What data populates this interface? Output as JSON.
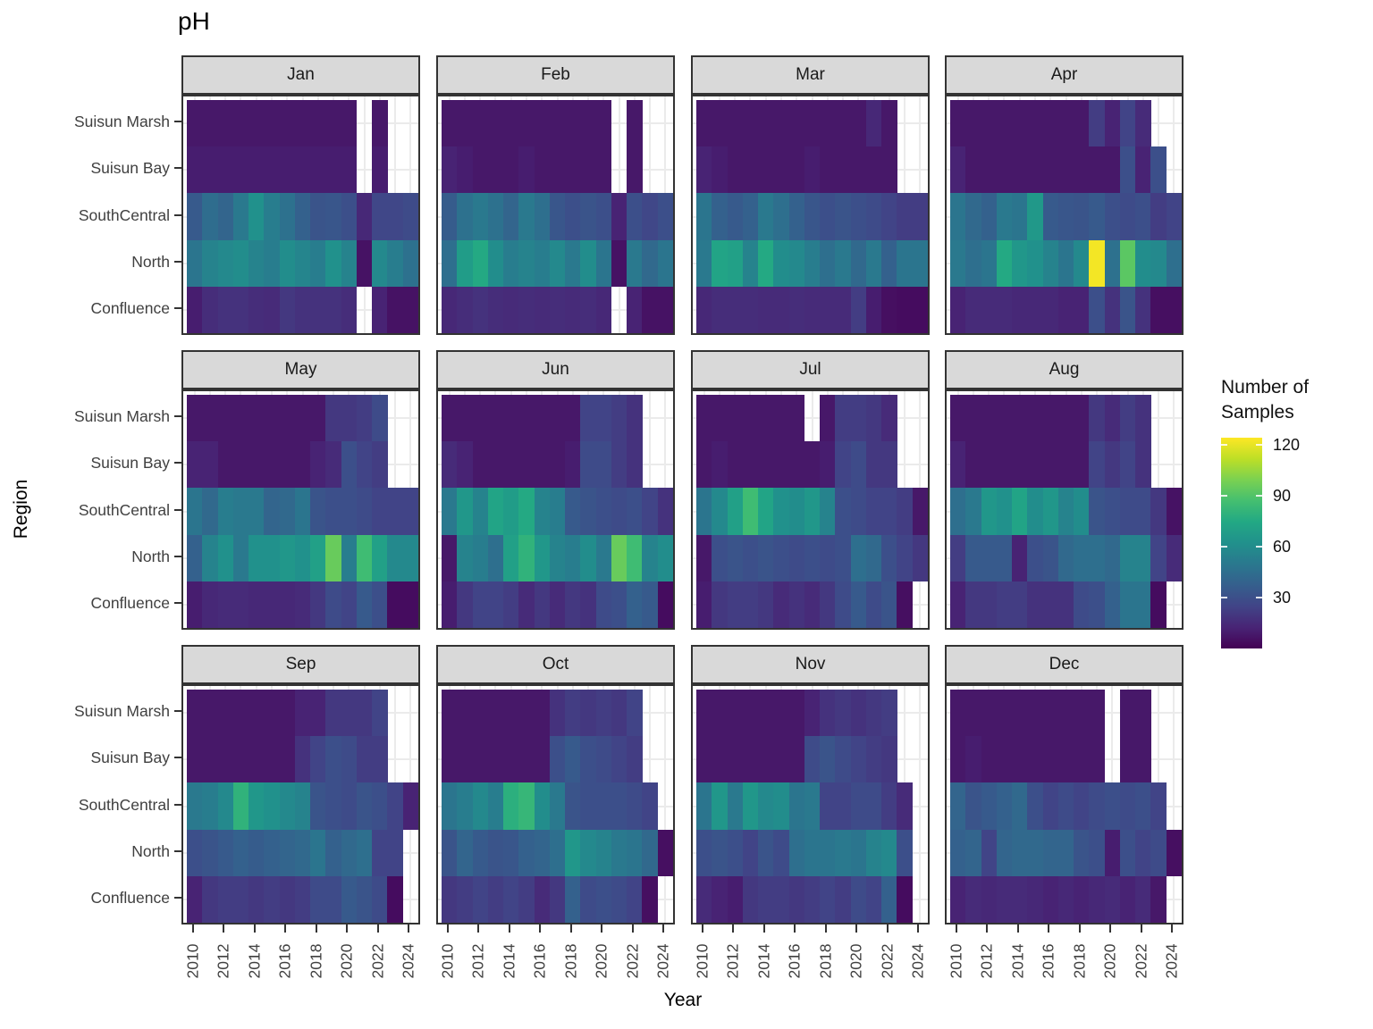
{
  "chart_data": {
    "type": "heatmap",
    "title": "pH",
    "xlabel": "Year",
    "ylabel": "Region",
    "years": [
      2010,
      2011,
      2012,
      2013,
      2014,
      2015,
      2016,
      2017,
      2018,
      2019,
      2020,
      2021,
      2022,
      2023,
      2024
    ],
    "x_tick_labels": [
      "2010",
      "2012",
      "2014",
      "2016",
      "2018",
      "2020",
      "2022",
      "2024"
    ],
    "regions": [
      "Suisun Marsh",
      "Suisun Bay",
      "SouthCentral",
      "North",
      "Confluence"
    ],
    "legend": {
      "title_line1": "Number of",
      "title_line2": "Samples",
      "ticks": [
        120,
        90,
        60,
        30
      ],
      "domain": [
        0,
        124
      ]
    },
    "colors": {
      "strip_bg": "#d9d9d9",
      "panel_border": "#333333",
      "grid": "#ebebeb",
      "tick_label": "#404040",
      "viridis": [
        [
          0,
          "#440154"
        ],
        [
          0.1,
          "#482475"
        ],
        [
          0.2,
          "#414487"
        ],
        [
          0.3,
          "#355f8d"
        ],
        [
          0.4,
          "#2a788e"
        ],
        [
          0.5,
          "#21918c"
        ],
        [
          0.6,
          "#22a884"
        ],
        [
          0.7,
          "#44bf70"
        ],
        [
          0.8,
          "#7ad151"
        ],
        [
          0.9,
          "#bddf26"
        ],
        [
          1,
          "#fde725"
        ]
      ]
    },
    "facets": [
      {
        "label": "Jan",
        "rows": [
          [
            8,
            8,
            8,
            8,
            8,
            8,
            8,
            8,
            8,
            8,
            8,
            null,
            8,
            null,
            null
          ],
          [
            10,
            10,
            10,
            10,
            10,
            10,
            10,
            10,
            10,
            10,
            10,
            null,
            10,
            null,
            null
          ],
          [
            35,
            44,
            40,
            50,
            62,
            52,
            46,
            38,
            32,
            33,
            30,
            14,
            26,
            26,
            28
          ],
          [
            48,
            55,
            58,
            60,
            55,
            52,
            60,
            56,
            52,
            62,
            55,
            6,
            58,
            52,
            46
          ],
          [
            10,
            16,
            18,
            18,
            16,
            15,
            20,
            18,
            18,
            18,
            16,
            null,
            12,
            6,
            6
          ]
        ]
      },
      {
        "label": "Feb",
        "rows": [
          [
            8,
            8,
            8,
            8,
            8,
            8,
            8,
            8,
            8,
            8,
            8,
            null,
            8,
            null,
            null
          ],
          [
            12,
            10,
            8,
            8,
            8,
            10,
            8,
            8,
            8,
            8,
            8,
            null,
            8,
            null,
            null
          ],
          [
            36,
            46,
            50,
            46,
            40,
            50,
            45,
            33,
            30,
            32,
            30,
            12,
            30,
            26,
            30
          ],
          [
            45,
            68,
            75,
            60,
            52,
            55,
            52,
            58,
            50,
            60,
            48,
            6,
            50,
            42,
            48
          ],
          [
            14,
            16,
            18,
            16,
            15,
            16,
            15,
            16,
            15,
            16,
            14,
            null,
            12,
            6,
            6
          ]
        ]
      },
      {
        "label": "Mar",
        "rows": [
          [
            8,
            8,
            8,
            8,
            8,
            8,
            8,
            8,
            8,
            8,
            8,
            14,
            8,
            null,
            null
          ],
          [
            12,
            10,
            8,
            8,
            8,
            8,
            8,
            10,
            8,
            8,
            8,
            8,
            8,
            null,
            null
          ],
          [
            48,
            38,
            35,
            38,
            50,
            45,
            38,
            33,
            30,
            32,
            30,
            28,
            25,
            22,
            22
          ],
          [
            50,
            72,
            70,
            55,
            75,
            60,
            58,
            52,
            45,
            50,
            42,
            50,
            38,
            48,
            48
          ],
          [
            14,
            16,
            16,
            16,
            15,
            15,
            16,
            15,
            15,
            15,
            22,
            10,
            5,
            4,
            4
          ]
        ]
      },
      {
        "label": "Apr",
        "rows": [
          [
            8,
            8,
            8,
            8,
            8,
            8,
            8,
            8,
            8,
            22,
            12,
            25,
            15,
            null,
            null
          ],
          [
            12,
            8,
            8,
            8,
            8,
            8,
            8,
            8,
            8,
            8,
            8,
            30,
            12,
            30,
            null
          ],
          [
            48,
            42,
            38,
            50,
            48,
            66,
            35,
            33,
            32,
            35,
            30,
            28,
            30,
            22,
            25
          ],
          [
            50,
            45,
            48,
            75,
            65,
            62,
            55,
            48,
            58,
            122,
            46,
            92,
            60,
            58,
            45
          ],
          [
            12,
            15,
            15,
            15,
            14,
            14,
            14,
            12,
            12,
            30,
            18,
            32,
            18,
            5,
            5
          ]
        ]
      },
      {
        "label": "May",
        "rows": [
          [
            8,
            8,
            8,
            8,
            8,
            8,
            8,
            8,
            8,
            20,
            20,
            22,
            28,
            null,
            null
          ],
          [
            12,
            12,
            8,
            8,
            8,
            8,
            8,
            8,
            12,
            15,
            30,
            25,
            22,
            null,
            null
          ],
          [
            48,
            42,
            52,
            50,
            50,
            40,
            42,
            48,
            32,
            30,
            30,
            28,
            25,
            25,
            25
          ],
          [
            38,
            55,
            62,
            50,
            62,
            62,
            65,
            62,
            70,
            95,
            52,
            85,
            70,
            58,
            58
          ],
          [
            10,
            14,
            15,
            15,
            14,
            14,
            14,
            15,
            20,
            28,
            25,
            35,
            30,
            4,
            4
          ]
        ]
      },
      {
        "label": "Jun",
        "rows": [
          [
            8,
            8,
            8,
            8,
            8,
            8,
            8,
            8,
            8,
            25,
            25,
            22,
            18,
            null,
            null
          ],
          [
            15,
            12,
            8,
            8,
            8,
            8,
            8,
            8,
            10,
            28,
            28,
            22,
            18,
            null,
            null
          ],
          [
            50,
            65,
            55,
            72,
            68,
            75,
            55,
            52,
            35,
            32,
            30,
            28,
            30,
            25,
            18
          ],
          [
            8,
            55,
            52,
            45,
            70,
            80,
            65,
            55,
            52,
            60,
            50,
            95,
            85,
            55,
            60
          ],
          [
            10,
            20,
            25,
            25,
            22,
            15,
            20,
            15,
            20,
            18,
            28,
            30,
            38,
            35,
            4
          ]
        ]
      },
      {
        "label": "Jul",
        "rows": [
          [
            8,
            8,
            8,
            8,
            8,
            8,
            8,
            null,
            8,
            22,
            22,
            20,
            15,
            null,
            null
          ],
          [
            8,
            10,
            8,
            8,
            8,
            8,
            8,
            8,
            10,
            25,
            28,
            20,
            20,
            null,
            null
          ],
          [
            48,
            58,
            70,
            85,
            72,
            62,
            60,
            65,
            55,
            30,
            28,
            25,
            25,
            22,
            8
          ],
          [
            8,
            30,
            32,
            30,
            32,
            30,
            28,
            30,
            28,
            30,
            45,
            42,
            30,
            25,
            20
          ],
          [
            10,
            20,
            22,
            22,
            20,
            15,
            18,
            15,
            20,
            28,
            35,
            28,
            32,
            5,
            null
          ]
        ]
      },
      {
        "label": "Aug",
        "rows": [
          [
            8,
            8,
            8,
            8,
            8,
            8,
            8,
            8,
            8,
            20,
            15,
            22,
            18,
            null,
            null
          ],
          [
            12,
            8,
            8,
            8,
            8,
            8,
            8,
            8,
            8,
            25,
            20,
            25,
            18,
            null,
            null
          ],
          [
            45,
            50,
            65,
            62,
            72,
            60,
            65,
            55,
            60,
            32,
            30,
            28,
            28,
            20,
            6
          ],
          [
            22,
            35,
            35,
            35,
            12,
            30,
            32,
            42,
            45,
            45,
            42,
            55,
            55,
            25,
            15
          ],
          [
            12,
            20,
            20,
            22,
            22,
            18,
            18,
            18,
            28,
            30,
            38,
            48,
            48,
            4,
            null
          ]
        ]
      },
      {
        "label": "Sep",
        "rows": [
          [
            8,
            8,
            8,
            8,
            8,
            8,
            8,
            12,
            12,
            20,
            20,
            20,
            25,
            null,
            null
          ],
          [
            8,
            8,
            8,
            8,
            8,
            8,
            8,
            18,
            25,
            30,
            28,
            22,
            22,
            null,
            null
          ],
          [
            50,
            52,
            58,
            80,
            65,
            62,
            58,
            55,
            32,
            30,
            28,
            32,
            30,
            25,
            12
          ],
          [
            30,
            32,
            35,
            38,
            36,
            38,
            40,
            42,
            48,
            38,
            42,
            45,
            25,
            25,
            null
          ],
          [
            12,
            20,
            22,
            22,
            20,
            22,
            20,
            22,
            28,
            28,
            35,
            32,
            28,
            4,
            null
          ]
        ]
      },
      {
        "label": "Oct",
        "rows": [
          [
            8,
            8,
            8,
            8,
            8,
            8,
            8,
            18,
            22,
            20,
            22,
            20,
            25,
            null,
            null
          ],
          [
            8,
            8,
            8,
            8,
            8,
            8,
            8,
            30,
            35,
            30,
            28,
            25,
            22,
            null,
            null
          ],
          [
            48,
            52,
            58,
            52,
            78,
            82,
            60,
            50,
            32,
            30,
            30,
            30,
            28,
            25,
            null
          ],
          [
            32,
            40,
            35,
            32,
            33,
            38,
            40,
            45,
            65,
            58,
            55,
            50,
            48,
            42,
            5
          ],
          [
            20,
            22,
            25,
            22,
            25,
            22,
            15,
            20,
            38,
            28,
            30,
            28,
            25,
            5,
            null
          ]
        ]
      },
      {
        "label": "Nov",
        "rows": [
          [
            8,
            8,
            8,
            8,
            8,
            8,
            8,
            12,
            18,
            20,
            18,
            20,
            22,
            null,
            null
          ],
          [
            8,
            8,
            8,
            8,
            8,
            8,
            8,
            28,
            32,
            28,
            25,
            22,
            20,
            null,
            null
          ],
          [
            48,
            65,
            50,
            65,
            58,
            60,
            48,
            50,
            25,
            25,
            28,
            28,
            22,
            15,
            null
          ],
          [
            30,
            32,
            30,
            25,
            32,
            28,
            45,
            48,
            48,
            50,
            48,
            55,
            58,
            30,
            null
          ],
          [
            15,
            12,
            10,
            20,
            22,
            22,
            20,
            22,
            25,
            22,
            28,
            25,
            38,
            4,
            null
          ]
        ]
      },
      {
        "label": "Dec",
        "rows": [
          [
            8,
            8,
            8,
            8,
            8,
            8,
            8,
            8,
            8,
            8,
            null,
            8,
            8,
            null,
            null
          ],
          [
            8,
            10,
            8,
            8,
            8,
            8,
            8,
            8,
            8,
            8,
            null,
            8,
            8,
            null,
            null
          ],
          [
            40,
            32,
            35,
            38,
            42,
            30,
            25,
            28,
            25,
            28,
            30,
            28,
            30,
            25,
            null
          ],
          [
            38,
            40,
            25,
            40,
            42,
            42,
            40,
            40,
            32,
            30,
            10,
            30,
            25,
            28,
            5
          ],
          [
            12,
            15,
            14,
            15,
            15,
            14,
            12,
            14,
            12,
            14,
            15,
            12,
            15,
            8,
            null
          ]
        ]
      }
    ]
  }
}
